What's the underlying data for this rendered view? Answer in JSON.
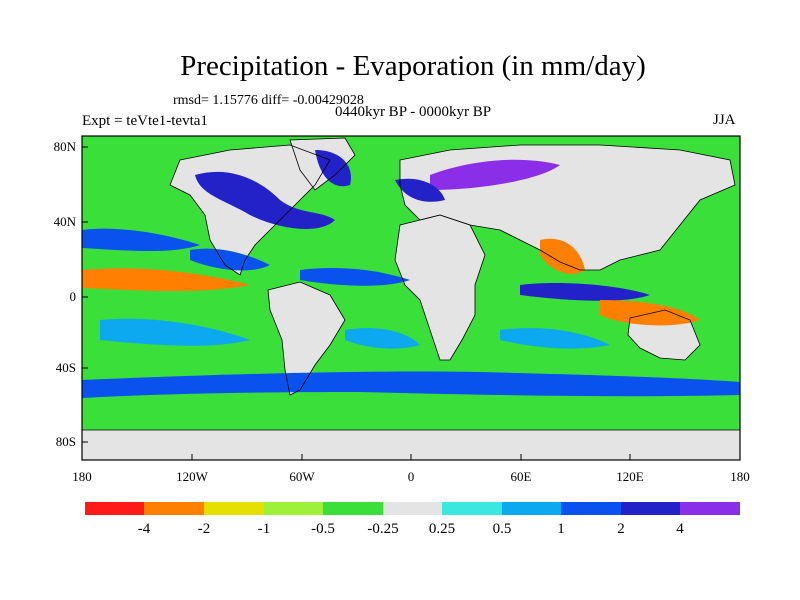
{
  "header": {
    "title": "Precipitation - Evaporation (in mm/day)",
    "stats": "rmsd= 1.15776 diff= -0.00429028",
    "experiment": "Expt = teVte1-tevta1",
    "period": "0440kyr BP - 0000kyr BP",
    "season": "JJA"
  },
  "axes": {
    "lat_labels": [
      "80N",
      "40N",
      "0",
      "40S",
      "80S"
    ],
    "lon_labels": [
      "180",
      "120W",
      "60W",
      "0",
      "60E",
      "120E",
      "180"
    ]
  },
  "colorbar": {
    "colors": [
      "#ff1a1a",
      "#ff8000",
      "#e5e000",
      "#9ef03a",
      "#3adf3a",
      "#e4e4e4",
      "#3ae8e0",
      "#0ca8f0",
      "#0a52ee",
      "#2222c8",
      "#8a2ee8"
    ],
    "labels": [
      "-4",
      "-2",
      "-1",
      "-0.5",
      "-0.25",
      "0.25",
      "0.5",
      "1",
      "2",
      "4"
    ]
  },
  "map_colors": {
    "land": "#e4e4e4",
    "ocean_base": "#3adf3a",
    "coast": "#000000"
  }
}
